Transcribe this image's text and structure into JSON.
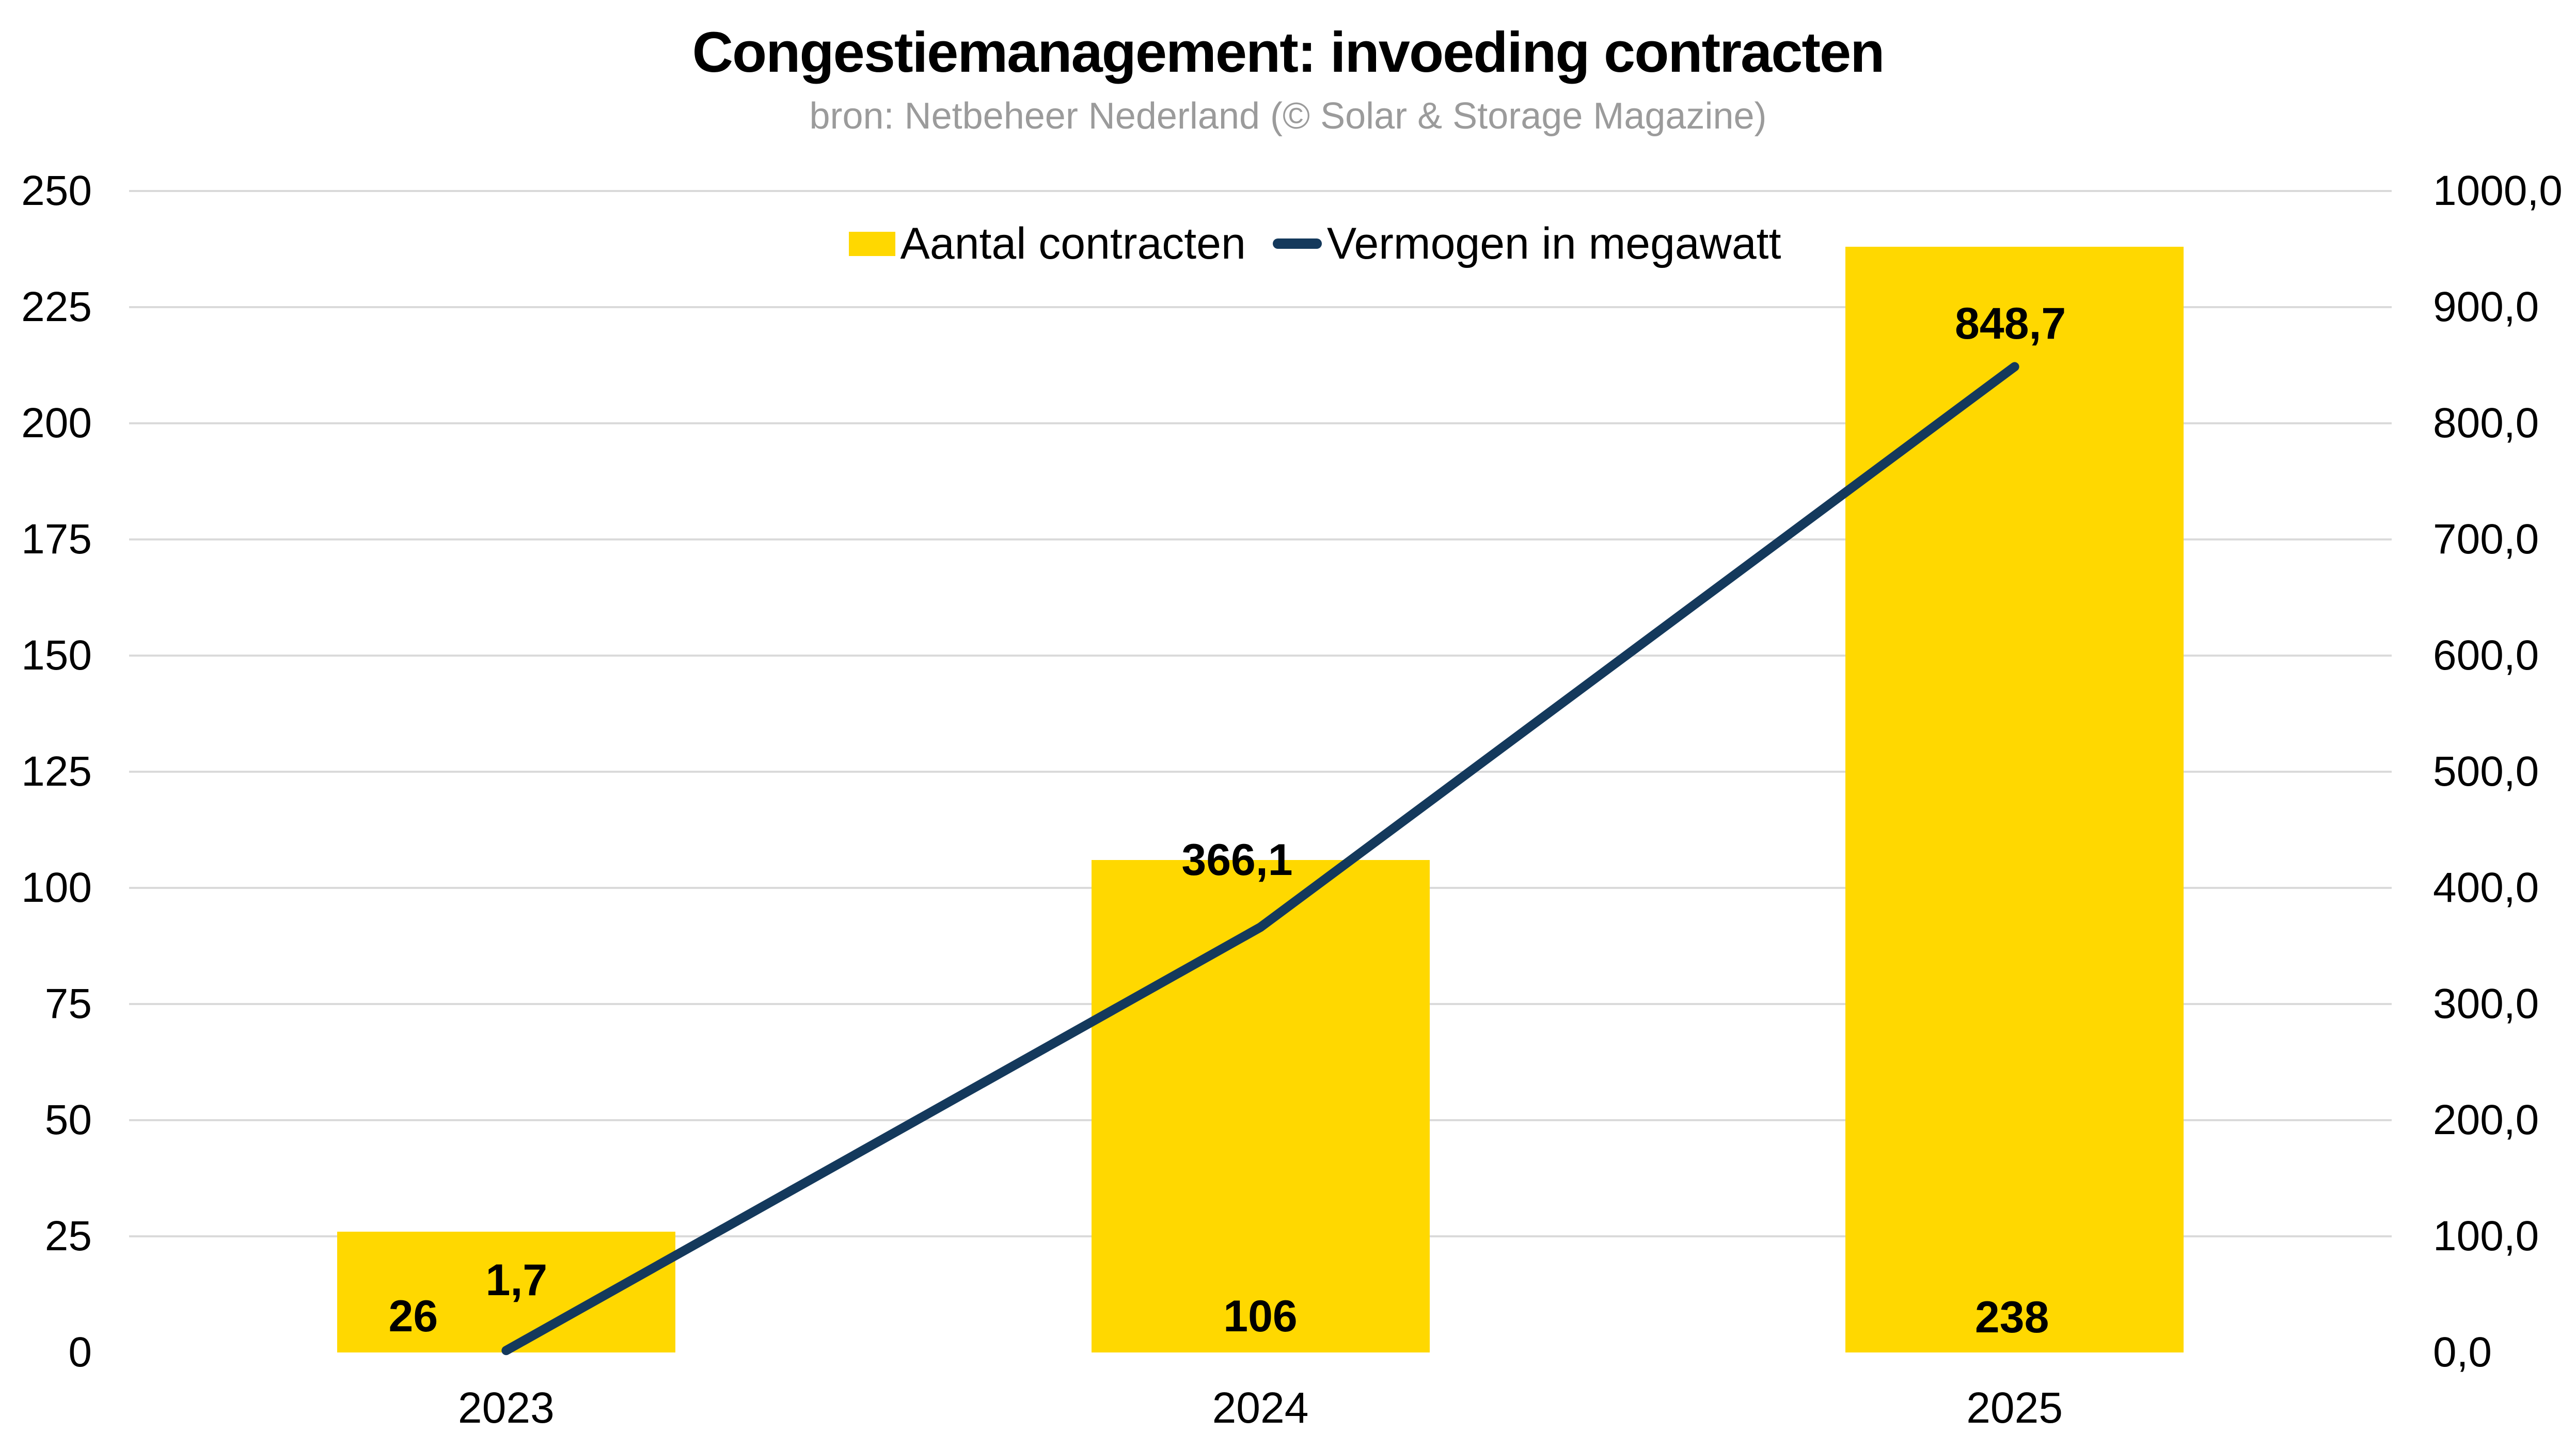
{
  "title": "Congestiemanagement: invoeding contracten",
  "subtitle": "bron: Netbeheer Nederland (© Solar & Storage Magazine)",
  "legend": {
    "items": [
      {
        "label": "Aantal contracten",
        "swatch": "bar-swatch"
      },
      {
        "label": "Vermogen in megawatt",
        "swatch": "line-swatch"
      }
    ]
  },
  "colors": {
    "bar_yellow": "#FFD800",
    "line_navy": "#14395C",
    "gridline_gray": "#DADADA",
    "subtitle_gray": "#9B9B9B",
    "text_black": "#000000",
    "background": "#FFFFFF"
  },
  "chart_data": {
    "type": "combo-bar-line",
    "title": "Congestiemanagement: invoeding contracten",
    "subtitle": "bron: Netbeheer Nederland (© Solar & Storage Magazine)",
    "categories": [
      "2023",
      "2024",
      "2025"
    ],
    "series": [
      {
        "name": "Aantal contracten",
        "type": "bar",
        "axis": "left",
        "values": [
          26,
          106,
          238
        ],
        "data_labels": [
          "26",
          "106",
          "238"
        ]
      },
      {
        "name": "Vermogen in megawatt",
        "type": "line",
        "axis": "right",
        "values": [
          1.7,
          366.1,
          848.7
        ],
        "data_labels": [
          "1,7",
          "366,1",
          "848,7"
        ]
      }
    ],
    "left_axis": {
      "min": 0,
      "max": 250,
      "step": 25,
      "tick_labels": [
        "0",
        "25",
        "50",
        "75",
        "100",
        "125",
        "150",
        "175",
        "200",
        "225",
        "250"
      ]
    },
    "right_axis": {
      "min": 0,
      "max": 1000,
      "step": 100,
      "tick_labels": [
        "0,0",
        "100,0",
        "200,0",
        "300,0",
        "400,0",
        "500,0",
        "600,0",
        "700,0",
        "800,0",
        "900,0",
        "1000,0"
      ]
    },
    "grid": true,
    "legend_position": "top-center"
  }
}
